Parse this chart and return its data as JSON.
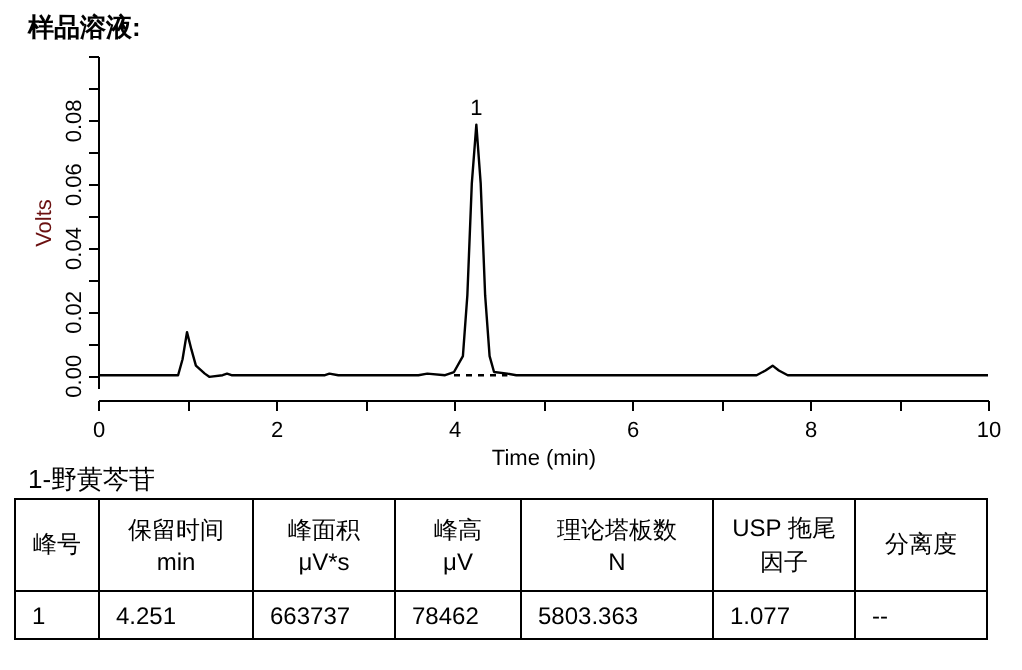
{
  "chart_data": {
    "type": "line",
    "title": "样品溶液:",
    "xlabel": "Time (min)",
    "ylabel": "Volts",
    "xlim": [
      0,
      10
    ],
    "ylim": [
      -0.004,
      0.1
    ],
    "xticks": [
      0,
      {
        "value": 1,
        "label": null
      },
      2,
      {
        "value": 3,
        "label": null
      },
      4,
      {
        "value": 5,
        "label": null
      },
      6,
      {
        "value": 7,
        "label": null
      },
      8,
      {
        "value": 9,
        "label": null
      },
      10
    ],
    "yticks": [
      {
        "value": 0,
        "label": "0.00"
      },
      {
        "value": 0.01,
        "label": null
      },
      {
        "value": 0.02,
        "label": "0.02"
      },
      {
        "value": 0.03,
        "label": null
      },
      {
        "value": 0.04,
        "label": "0.04"
      },
      {
        "value": 0.05,
        "label": null
      },
      {
        "value": 0.06,
        "label": "0.06"
      },
      {
        "value": 0.07,
        "label": null
      },
      {
        "value": 0.08,
        "label": "0.08"
      },
      {
        "value": 0.09,
        "label": null
      },
      {
        "value": 0.1,
        "label": null
      }
    ],
    "grid": false,
    "series": [
      {
        "color": "#000000",
        "line_style": "solid",
        "x": [
          0,
          0.9,
          0.95,
          1.0,
          1.05,
          1.1,
          1.2,
          1.25,
          1.4,
          1.45,
          1.5,
          2.55,
          2.6,
          2.7,
          3.6,
          3.7,
          3.9,
          4.0,
          4.1,
          4.15,
          4.2,
          4.251,
          4.3,
          4.35,
          4.4,
          4.45,
          4.6,
          4.7,
          7.4,
          7.5,
          7.58,
          7.65,
          7.75,
          10
        ],
        "values": [
          0,
          0,
          0.005,
          0.0135,
          0.008,
          0.003,
          0.0005,
          -0.0005,
          0,
          0.0005,
          0,
          0,
          0.0005,
          0,
          0,
          0.0005,
          0,
          0.001,
          0.006,
          0.025,
          0.06,
          0.0785,
          0.06,
          0.025,
          0.006,
          0.001,
          0.0005,
          0,
          0,
          0.0015,
          0.003,
          0.0015,
          0,
          0
        ]
      },
      {
        "color": "#000000",
        "line_style": "dashed",
        "x": [
          4.0,
          4.6
        ],
        "values": [
          0,
          0
        ]
      }
    ],
    "annotations": [
      {
        "text": "1",
        "x": 4.251,
        "y": 0.0785
      },
      "1-野黄芩苷",
      "峰号",
      "保留时间\nmin",
      "峰面积\nμV*s",
      "峰高\nμV",
      "理论塔板数\nN",
      "USP 拖尾因子",
      "分离度",
      "1",
      "4.251",
      "663737",
      "78462",
      "5803.363",
      "1.077",
      "--"
    ]
  }
}
